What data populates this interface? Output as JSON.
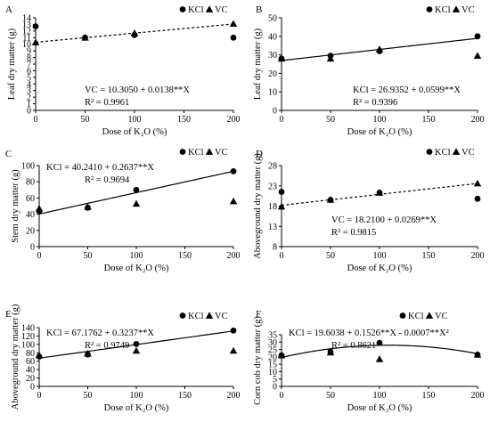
{
  "chart_data": [
    {
      "type": "scatter",
      "letter": "A",
      "xlabel": "Dose of K₂O (%)",
      "ylabel": "Leaf dry matter (g)",
      "xlim": [
        0,
        200
      ],
      "ylim": [
        0,
        14
      ],
      "xticks": [
        0,
        50,
        100,
        150,
        200
      ],
      "yticks": [
        0,
        1,
        2,
        3,
        4,
        5,
        6,
        7,
        8,
        9,
        10,
        11,
        12,
        13,
        14
      ],
      "legend": [
        "KCl",
        "VC"
      ],
      "legend_position": "top-right",
      "series": [
        {
          "name": "KCl",
          "marker": "circle",
          "x": [
            0,
            50,
            100,
            200
          ],
          "y": [
            12.7,
            11.0,
            11.4,
            11.0
          ]
        },
        {
          "name": "VC",
          "marker": "triangle",
          "x": [
            0,
            50,
            100,
            200
          ],
          "y": [
            10.3,
            11.0,
            11.7,
            13.1
          ]
        }
      ],
      "fit": {
        "series": "VC",
        "style": "dashed",
        "coef": [
          10.305,
          0.0138
        ]
      },
      "equation": "VC = 10.3050 + 0.0138**X",
      "r2": "R² = 0.9961"
    },
    {
      "type": "scatter",
      "letter": "B",
      "xlabel": "Dose of K₂O (%)",
      "ylabel": "Leaf dry matter (g)",
      "xlim": [
        0,
        200
      ],
      "ylim": [
        0,
        50
      ],
      "xticks": [
        0,
        50,
        100,
        150,
        200
      ],
      "yticks": [
        0,
        10,
        20,
        30,
        40,
        50
      ],
      "legend": [
        "KCl",
        "VC"
      ],
      "legend_position": "top-right",
      "series": [
        {
          "name": "KCl",
          "marker": "circle",
          "x": [
            0,
            50,
            100,
            200
          ],
          "y": [
            28.0,
            29.5,
            32.0,
            40.0
          ]
        },
        {
          "name": "VC",
          "marker": "triangle",
          "x": [
            0,
            50,
            100,
            200
          ],
          "y": [
            28.0,
            28.0,
            33.0,
            29.5
          ]
        }
      ],
      "fit": {
        "series": "KCl",
        "style": "solid",
        "coef": [
          26.9352,
          0.0599
        ]
      },
      "equation": "KCl = 26.9352 + 0.0599**X",
      "r2": "R² = 0.9396"
    },
    {
      "type": "scatter",
      "letter": "C",
      "xlabel": "Dose of K₂O (%)",
      "ylabel": "Stem dry matter (g)",
      "xlim": [
        0,
        200
      ],
      "ylim": [
        0,
        100
      ],
      "xticks": [
        0,
        50,
        100,
        150,
        200
      ],
      "yticks": [
        0,
        20,
        40,
        60,
        80,
        100
      ],
      "legend": [
        "KCl",
        "VC"
      ],
      "legend_position": "top-right",
      "series": [
        {
          "name": "KCl",
          "marker": "circle",
          "x": [
            0,
            50,
            100,
            200
          ],
          "y": [
            44.0,
            48.0,
            70.0,
            93.0
          ]
        },
        {
          "name": "VC",
          "marker": "triangle",
          "x": [
            0,
            50,
            100,
            200
          ],
          "y": [
            47.0,
            49.0,
            53.0,
            56.0
          ]
        }
      ],
      "fit": {
        "series": "KCl",
        "style": "solid",
        "coef": [
          40.241,
          0.2637
        ]
      },
      "equation": "KCl = 40.2410 + 0.2637**X",
      "r2": "R² = 0.9694"
    },
    {
      "type": "scatter",
      "letter": "D",
      "xlabel": "Dose of K₂O (%)",
      "ylabel": "Aboveground dry matter (g)",
      "xlim": [
        0,
        200
      ],
      "ylim": [
        8,
        28
      ],
      "xticks": [
        0,
        50,
        100,
        150,
        200
      ],
      "yticks": [
        8,
        13,
        18,
        23,
        28
      ],
      "legend": [
        "KCl",
        "VC"
      ],
      "legend_position": "top-right",
      "series": [
        {
          "name": "KCl",
          "marker": "circle",
          "x": [
            0,
            50,
            100,
            200
          ],
          "y": [
            21.5,
            19.5,
            21.3,
            19.8
          ]
        },
        {
          "name": "VC",
          "marker": "triangle",
          "x": [
            0,
            50,
            100,
            200
          ],
          "y": [
            17.9,
            19.6,
            21.3,
            23.6
          ]
        }
      ],
      "fit": {
        "series": "VC",
        "style": "dashed",
        "coef": [
          18.21,
          0.0269
        ]
      },
      "equation": "VC = 18.2100 + 0.0269**X",
      "r2": "R² = 0.9815"
    },
    {
      "type": "scatter",
      "letter": "E",
      "xlabel": "Dose of K₂O (%)",
      "ylabel": "Aboveground dry matter (g)",
      "xlim": [
        0,
        200
      ],
      "ylim": [
        0,
        140
      ],
      "xticks": [
        0,
        50,
        100,
        150,
        200
      ],
      "yticks": [
        0,
        20,
        40,
        60,
        80,
        100,
        120,
        140
      ],
      "legend": [
        "KCl",
        "VC"
      ],
      "legend_position": "top-right",
      "series": [
        {
          "name": "KCl",
          "marker": "circle",
          "x": [
            0,
            50,
            100,
            200
          ],
          "y": [
            71.0,
            76.0,
            101.0,
            133.0
          ]
        },
        {
          "name": "VC",
          "marker": "triangle",
          "x": [
            0,
            50,
            100,
            200
          ],
          "y": [
            74.0,
            78.0,
            85.0,
            85.0
          ]
        }
      ],
      "fit": {
        "series": "KCl",
        "style": "solid",
        "coef": [
          67.1762,
          0.3237
        ]
      },
      "equation": "KCl = 67.1762 + 0.3237**X",
      "r2": "R² = 0.9749"
    },
    {
      "type": "scatter",
      "letter": "F",
      "xlabel": "Dose of K₂O (%)",
      "ylabel": "Corn cob dry matter (g)",
      "xlim": [
        0,
        200
      ],
      "ylim": [
        0,
        35
      ],
      "xticks": [
        0,
        50,
        100,
        150,
        200
      ],
      "yticks": [
        0,
        5,
        10,
        15,
        20,
        25,
        30,
        35
      ],
      "legend": [
        "KCl",
        "VC"
      ],
      "legend_position": "top-right",
      "series": [
        {
          "name": "KCl",
          "marker": "circle",
          "x": [
            0,
            50,
            100,
            200
          ],
          "y": [
            21.0,
            23.5,
            29.5,
            21.5
          ]
        },
        {
          "name": "VC",
          "marker": "triangle",
          "x": [
            0,
            50,
            100,
            200
          ],
          "y": [
            21.0,
            23.0,
            18.5,
            21.5
          ]
        }
      ],
      "fit": {
        "series": "KCl",
        "style": "solid",
        "coef": [
          19.6038,
          0.1526,
          -0.0007
        ]
      },
      "equation": "KCl = 19.6038 + 0.1526**X - 0.0007**X²",
      "r2": "R² = 0.8621"
    }
  ]
}
